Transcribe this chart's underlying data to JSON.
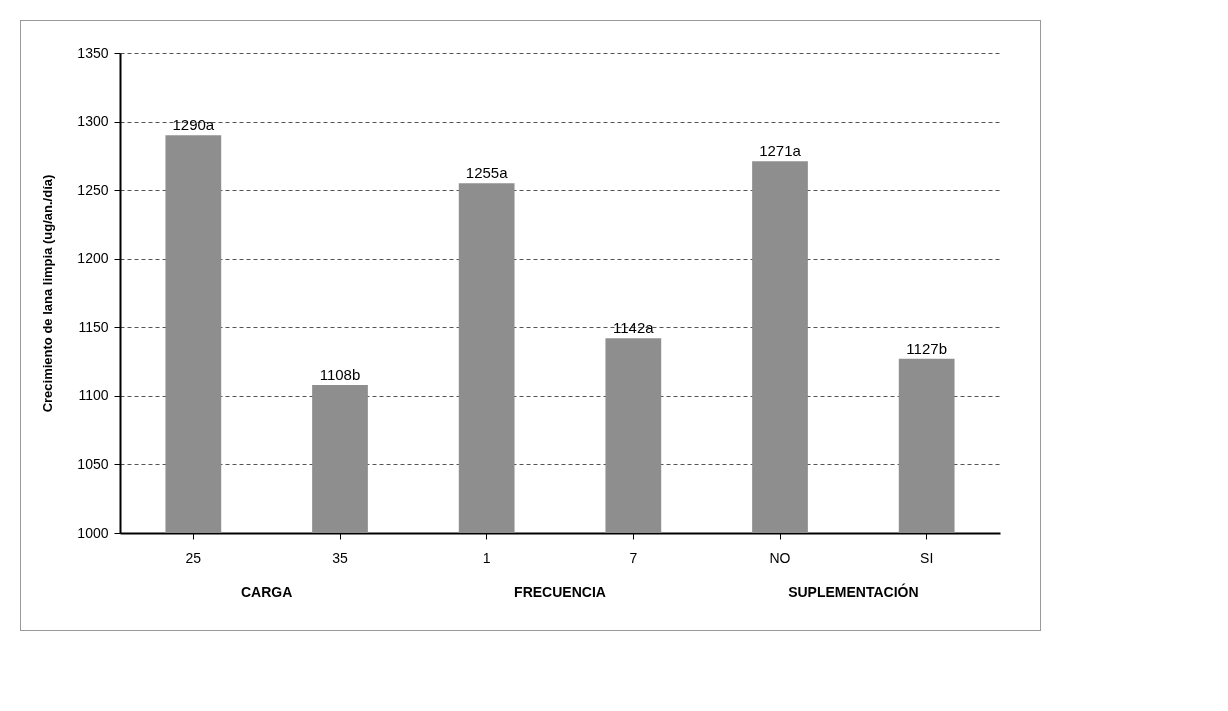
{
  "chart_data": {
    "type": "bar",
    "ylabel": "Crecimiento de lana limpia  (ug/an./día)",
    "categories": [
      "25",
      "35",
      "1",
      "7",
      "NO",
      "SI"
    ],
    "values": [
      1290,
      1108,
      1255,
      1142,
      1271,
      1127
    ],
    "value_labels": [
      "1290a",
      "1108b",
      "1255a",
      "1142a",
      "1271a",
      "1127b"
    ],
    "color": "#8e8e8e",
    "ylim": [
      1000,
      1350
    ],
    "yticks": [
      1000,
      1050,
      1100,
      1150,
      1200,
      1250,
      1300,
      1350
    ],
    "grid": "y",
    "annotations": [
      "CARGA",
      "FRECUENCIA",
      "SUPLEMENTACIÓN"
    ]
  }
}
